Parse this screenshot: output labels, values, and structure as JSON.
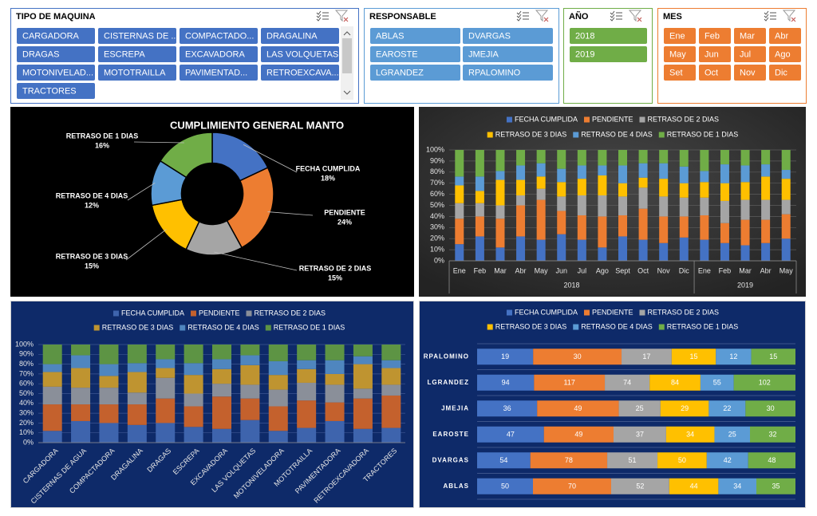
{
  "slicers": [
    {
      "title": "TIPO DE MAQUINA",
      "color": "#4472c4",
      "items": [
        "CARGADORA",
        "CISTERNAS DE ...",
        "COMPACTADO...",
        "DRAGALINA",
        "DRAGAS",
        "ESCREPA",
        "EXCAVADORA",
        "LAS VOLQUETAS",
        "MOTONIVELAD...",
        "MOTOTRAILLA",
        "PAVIMENTAD...",
        "RETROEXCAVA...",
        "TRACTORES"
      ]
    },
    {
      "title": "RESPONSABLE",
      "color": "#5b9bd5",
      "items": [
        "ABLAS",
        "DVARGAS",
        "EAROSTE",
        "JMEJIA",
        "LGRANDEZ",
        "RPALOMINO"
      ]
    },
    {
      "title": "AÑO",
      "color": "#70ad47",
      "items": [
        "2018",
        "2019"
      ]
    },
    {
      "title": "MES",
      "color": "#ed7d31",
      "items": [
        "Ene",
        "Feb",
        "Mar",
        "Abr",
        "May",
        "Jun",
        "Jul",
        "Ago",
        "Set",
        "Oct",
        "Nov",
        "Dic"
      ]
    }
  ],
  "chart_data": [
    {
      "type": "pie",
      "title": "CUMPLIMIENTO GENERAL MANTO",
      "hole": 0.5,
      "categories": [
        "FECHA CUMPLIDA",
        "PENDIENTE",
        "RETRASO DE 2 DIAS",
        "RETRASO DE 3 DIAS",
        "RETRASO DE 4 DIAS",
        "RETRASO DE 1 DIAS"
      ],
      "values": [
        18,
        24,
        15,
        15,
        12,
        16
      ],
      "value_labels": [
        "18%",
        "24%",
        "15%",
        "15%",
        "12%",
        "16%"
      ],
      "colors": [
        "#4472c4",
        "#ed7d31",
        "#a5a5a5",
        "#ffc000",
        "#5b9bd5",
        "#70ad47"
      ]
    },
    {
      "type": "bar",
      "orientation": "vertical",
      "stacking": "percent",
      "groups": [
        {
          "label": "2018",
          "categories": [
            "Ene",
            "Feb",
            "Mar",
            "Abr",
            "May",
            "Jun",
            "Jul",
            "Ago",
            "Sept",
            "Oct",
            "Nov",
            "Dic"
          ]
        },
        {
          "label": "2019",
          "categories": [
            "Ene",
            "Feb",
            "Mar",
            "Abr",
            "May"
          ]
        }
      ],
      "series": [
        {
          "name": "FECHA CUMPLIDA",
          "color": "#4472c4",
          "values": [
            15,
            22,
            12,
            22,
            19,
            24,
            19,
            12,
            22,
            19,
            16,
            21,
            19,
            16,
            14,
            16,
            20
          ]
        },
        {
          "name": "PENDIENTE",
          "color": "#ed7d31",
          "values": [
            23,
            18,
            26,
            28,
            36,
            21,
            22,
            28,
            19,
            28,
            24,
            19,
            22,
            18,
            23,
            21,
            22
          ]
        },
        {
          "name": "RETRASO DE 2 DIAS",
          "color": "#a5a5a5",
          "values": [
            14,
            12,
            12,
            9,
            10,
            13,
            18,
            19,
            17,
            19,
            18,
            17,
            16,
            20,
            18,
            18,
            13
          ]
        },
        {
          "name": "RETRASO DE 3 DIAS",
          "color": "#ffc000",
          "values": [
            16,
            11,
            23,
            14,
            11,
            13,
            15,
            18,
            12,
            9,
            16,
            13,
            14,
            16,
            16,
            21,
            19
          ]
        },
        {
          "name": "RETRASO DE 4 DIAS",
          "color": "#5b9bd5",
          "values": [
            8,
            13,
            8,
            13,
            12,
            12,
            12,
            9,
            16,
            13,
            14,
            15,
            10,
            17,
            15,
            11,
            8
          ]
        },
        {
          "name": "RETRASO DE 1 DIAS",
          "color": "#70ad47",
          "values": [
            24,
            24,
            19,
            14,
            12,
            17,
            14,
            14,
            14,
            12,
            12,
            15,
            19,
            13,
            14,
            13,
            18
          ]
        }
      ],
      "ylim": [
        0,
        100
      ],
      "yticks": [
        {
          "value": 0,
          "label": "0%"
        },
        {
          "value": 10,
          "label": "10%"
        },
        {
          "value": 20,
          "label": "20%"
        },
        {
          "value": 30,
          "label": "30%"
        },
        {
          "value": 40,
          "label": "40%"
        },
        {
          "value": 50,
          "label": "50%"
        },
        {
          "value": 60,
          "label": "60%"
        },
        {
          "value": 70,
          "label": "70%"
        },
        {
          "value": 80,
          "label": "80%"
        },
        {
          "value": 90,
          "label": "90%"
        },
        {
          "value": 100,
          "label": "100%"
        }
      ],
      "grid": true
    },
    {
      "type": "bar",
      "orientation": "vertical",
      "stacking": "percent",
      "categories": [
        "CARGADORA",
        "CISTERNAS DE AGUA",
        "COMPACTADORA",
        "DRAGALINA",
        "DRAGAS",
        "ESCREPA",
        "EXCAVADORA",
        "LAS VOLQUETAS",
        "MOTONIVELADORA",
        "MOTOTRAILLA",
        "PAVIMENTADORA",
        "RETROEXCAVADORA",
        "TRACTORES"
      ],
      "series": [
        {
          "name": "FECHA CUMPLIDA",
          "color": "#3e64ad",
          "values": [
            12,
            22,
            20,
            18,
            20,
            16,
            14,
            23,
            12,
            15,
            22,
            14,
            15
          ]
        },
        {
          "name": "PENDIENTE",
          "color": "#c4612d",
          "values": [
            27,
            17,
            19,
            21,
            25,
            21,
            33,
            22,
            25,
            28,
            19,
            31,
            33
          ]
        },
        {
          "name": "RETRASO DE 2 DIAS",
          "color": "#8a8f99",
          "values": [
            18,
            17,
            17,
            12,
            21,
            13,
            13,
            14,
            17,
            18,
            18,
            10,
            11
          ]
        },
        {
          "name": "RETRASO DE 3 DIAS",
          "color": "#bf9430",
          "values": [
            15,
            20,
            12,
            21,
            10,
            19,
            15,
            20,
            15,
            14,
            11,
            25,
            17
          ]
        },
        {
          "name": "RETRASO DE 4 DIAS",
          "color": "#4f86bf",
          "values": [
            8,
            13,
            12,
            9,
            9,
            12,
            10,
            10,
            14,
            9,
            14,
            8,
            8
          ]
        },
        {
          "name": "RETRASO DE 1 DIAS",
          "color": "#5d9444",
          "values": [
            20,
            11,
            20,
            19,
            15,
            19,
            15,
            11,
            17,
            16,
            16,
            12,
            16
          ]
        }
      ],
      "ylim": [
        0,
        100
      ],
      "yticks": [
        {
          "value": 0,
          "label": "0%"
        },
        {
          "value": 10,
          "label": "10%"
        },
        {
          "value": 20,
          "label": "20%"
        },
        {
          "value": 30,
          "label": "30%"
        },
        {
          "value": 40,
          "label": "40%"
        },
        {
          "value": 50,
          "label": "50%"
        },
        {
          "value": 60,
          "label": "60%"
        },
        {
          "value": 70,
          "label": "70%"
        },
        {
          "value": 80,
          "label": "80%"
        },
        {
          "value": 90,
          "label": "90%"
        },
        {
          "value": 100,
          "label": "100%"
        }
      ],
      "grid": true
    },
    {
      "type": "bar",
      "orientation": "horizontal",
      "stacking": "percent",
      "data_labels": true,
      "categories": [
        "ABLAS",
        "DVARGAS",
        "EAROSTE",
        "JMEJIA",
        "LGRANDEZ",
        "RPALOMINO"
      ],
      "series": [
        {
          "name": "FECHA CUMPLIDA",
          "color": "#4472c4",
          "values": [
            50,
            54,
            47,
            36,
            94,
            19
          ]
        },
        {
          "name": "PENDIENTE",
          "color": "#ed7d31",
          "values": [
            70,
            78,
            49,
            49,
            117,
            30
          ]
        },
        {
          "name": "RETRASO DE 2 DIAS",
          "color": "#a5a5a5",
          "values": [
            52,
            51,
            37,
            25,
            74,
            17
          ]
        },
        {
          "name": "RETRASO DE 3 DIAS",
          "color": "#ffc000",
          "values": [
            44,
            50,
            34,
            29,
            84,
            15
          ]
        },
        {
          "name": "RETRASO DE 4 DIAS",
          "color": "#5b9bd5",
          "values": [
            34,
            42,
            25,
            22,
            55,
            12
          ]
        },
        {
          "name": "RETRASO DE 1 DIAS",
          "color": "#70ad47",
          "values": [
            35,
            48,
            32,
            30,
            102,
            15
          ]
        }
      ]
    }
  ]
}
